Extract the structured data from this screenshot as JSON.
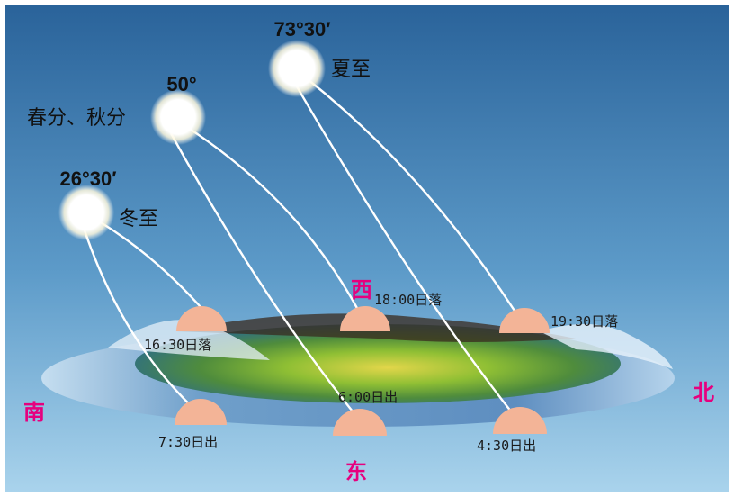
{
  "colors": {
    "sky_top": "#2a639a",
    "sky_bottom": "#a9d3ec",
    "sun_glow": "#ffffff",
    "sun_path": "#ffffff",
    "sun_half": "#f3b497",
    "direction_label": "#e6007e",
    "ground_green": "#8fbf34",
    "ground_yellow": "#e2d64a"
  },
  "suns": [
    {
      "id": "summer",
      "angle": "73°30′",
      "season": "夏至"
    },
    {
      "id": "equinox",
      "angle": "50°",
      "season": "春分、秋分"
    },
    {
      "id": "winter",
      "angle": "26°30′",
      "season": "冬至"
    }
  ],
  "events": {
    "winter_set": "16:30日落",
    "equinox_set": "18:00日落",
    "summer_set": "19:30日落",
    "winter_rise": "7:30日出",
    "equinox_rise": "6:00日出",
    "summer_rise": "4:30日出"
  },
  "directions": {
    "west": "西",
    "east": "东",
    "south": "南",
    "north": "北"
  }
}
